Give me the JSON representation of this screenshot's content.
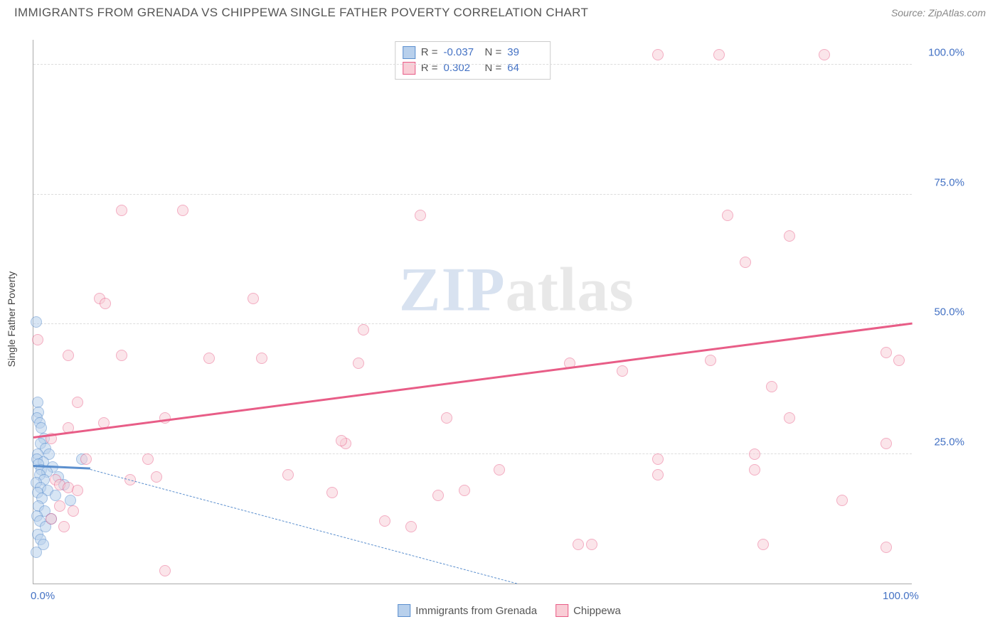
{
  "title": "IMMIGRANTS FROM GRENADA VS CHIPPEWA SINGLE FATHER POVERTY CORRELATION CHART",
  "source": "Source: ZipAtlas.com",
  "ylabel": "Single Father Poverty",
  "watermark_zip": "ZIP",
  "watermark_atlas": "atlas",
  "chart": {
    "type": "scatter",
    "xlim": [
      0,
      100
    ],
    "ylim": [
      0,
      105
    ],
    "ytick_labels": [
      "25.0%",
      "50.0%",
      "75.0%",
      "100.0%"
    ],
    "ytick_values": [
      25,
      50,
      75,
      100
    ],
    "xtick_labels": [
      "0.0%",
      "100.0%"
    ],
    "xtick_values": [
      0,
      100
    ],
    "grid_color": "#dddddd",
    "background_color": "#ffffff",
    "point_radius": 8,
    "series": [
      {
        "name": "Immigrants from Grenada",
        "fill": "#b8d0ec",
        "stroke": "#5b8fce",
        "fill_opacity": 0.55,
        "R": "-0.037",
        "N": "39",
        "trend": {
          "x1": 0,
          "y1": 22.5,
          "x2": 6.5,
          "y2": 22
        },
        "dash_extend": {
          "x1": 6.5,
          "y1": 22,
          "x2": 55,
          "y2": 0
        },
        "points": [
          [
            0.3,
            50.5
          ],
          [
            0.5,
            35
          ],
          [
            0.6,
            33
          ],
          [
            0.4,
            32
          ],
          [
            0.7,
            31
          ],
          [
            0.9,
            30
          ],
          [
            1.2,
            28
          ],
          [
            0.8,
            27
          ],
          [
            1.4,
            26
          ],
          [
            0.5,
            25
          ],
          [
            1.8,
            25
          ],
          [
            0.4,
            24
          ],
          [
            1.1,
            23.5
          ],
          [
            0.6,
            23
          ],
          [
            2.2,
            22.5
          ],
          [
            0.9,
            22
          ],
          [
            1.5,
            21.5
          ],
          [
            0.7,
            21
          ],
          [
            2.8,
            20.5
          ],
          [
            1.2,
            20
          ],
          [
            0.3,
            19.5
          ],
          [
            3.5,
            19
          ],
          [
            0.8,
            18.5
          ],
          [
            1.6,
            18
          ],
          [
            0.5,
            17.5
          ],
          [
            2.5,
            17
          ],
          [
            1.0,
            16.5
          ],
          [
            4.2,
            16
          ],
          [
            0.6,
            15
          ],
          [
            1.3,
            14
          ],
          [
            0.4,
            13
          ],
          [
            2.0,
            12.5
          ],
          [
            0.7,
            12
          ],
          [
            1.4,
            11
          ],
          [
            0.5,
            9.5
          ],
          [
            0.8,
            8.5
          ],
          [
            1.1,
            7.5
          ],
          [
            0.3,
            6
          ],
          [
            5.5,
            24
          ]
        ]
      },
      {
        "name": "Chippewa",
        "fill": "#f9cdd6",
        "stroke": "#e85d87",
        "fill_opacity": 0.5,
        "R": "0.302",
        "N": "64",
        "trend": {
          "x1": 0,
          "y1": 28,
          "x2": 100,
          "y2": 50
        },
        "points": [
          [
            71,
            102
          ],
          [
            78,
            102
          ],
          [
            90,
            102
          ],
          [
            44,
            71
          ],
          [
            79,
            71
          ],
          [
            86,
            67
          ],
          [
            10,
            72
          ],
          [
            17,
            72
          ],
          [
            7.5,
            55
          ],
          [
            8.2,
            54
          ],
          [
            25,
            55
          ],
          [
            81,
            62
          ],
          [
            0.5,
            47
          ],
          [
            4,
            44
          ],
          [
            10,
            44
          ],
          [
            20,
            43.5
          ],
          [
            26,
            43.5
          ],
          [
            37,
            42.5
          ],
          [
            61,
            42.5
          ],
          [
            77,
            43
          ],
          [
            97,
            44.5
          ],
          [
            98.5,
            43
          ],
          [
            37.5,
            49
          ],
          [
            84,
            38
          ],
          [
            67,
            41
          ],
          [
            5,
            35
          ],
          [
            15,
            32
          ],
          [
            47,
            32
          ],
          [
            86,
            32
          ],
          [
            4,
            30
          ],
          [
            8,
            31
          ],
          [
            2,
            28
          ],
          [
            35.5,
            27
          ],
          [
            97,
            27
          ],
          [
            6,
            24
          ],
          [
            13,
            24
          ],
          [
            29,
            21
          ],
          [
            35,
            27.5
          ],
          [
            53,
            22
          ],
          [
            71,
            24
          ],
          [
            82,
            25
          ],
          [
            2.5,
            20
          ],
          [
            3,
            19
          ],
          [
            4,
            18.5
          ],
          [
            5,
            18
          ],
          [
            11,
            20
          ],
          [
            14,
            20.5
          ],
          [
            34,
            17.5
          ],
          [
            46,
            17
          ],
          [
            49,
            18
          ],
          [
            71,
            21
          ],
          [
            82,
            22
          ],
          [
            3,
            15
          ],
          [
            4.5,
            14
          ],
          [
            40,
            12
          ],
          [
            92,
            16
          ],
          [
            2,
            12.5
          ],
          [
            3.5,
            11
          ],
          [
            43,
            11
          ],
          [
            62,
            7.5
          ],
          [
            63.5,
            7.5
          ],
          [
            83,
            7.5
          ],
          [
            15,
            2.5
          ],
          [
            97,
            7
          ]
        ]
      }
    ]
  },
  "legend_items": [
    "Immigrants from Grenada",
    "Chippewa"
  ]
}
